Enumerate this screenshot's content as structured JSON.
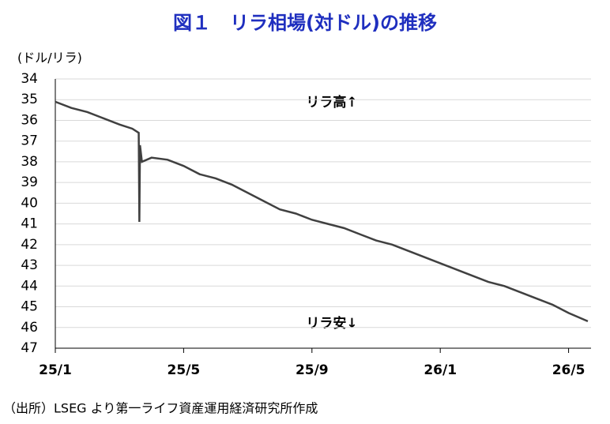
{
  "chart_data": {
    "type": "line",
    "title": "図１　リラ相場(対ドル)の推移",
    "y_label": "(ドル/リラ)",
    "annotations": [
      "リラ高↑",
      "リラ安↓"
    ],
    "source": "（出所）LSEG より第一ライフ資産運用経済研究所作成",
    "x": [
      0,
      0.5,
      1,
      1.5,
      2,
      2.4,
      2.6,
      2.62,
      2.64,
      2.7,
      3,
      3.5,
      4,
      4.5,
      5,
      5.5,
      6,
      6.5,
      7,
      7.5,
      8,
      8.5,
      9,
      9.5,
      10,
      10.5,
      11,
      11.5,
      12,
      12.5,
      13,
      13.5,
      14,
      14.5,
      15,
      15.5,
      16,
      16.6
    ],
    "series": [
      {
        "color": "#404040",
        "values": [
          35.1,
          35.4,
          35.6,
          35.9,
          36.2,
          36.4,
          36.6,
          40.9,
          37.2,
          38.0,
          37.8,
          37.9,
          38.2,
          38.6,
          38.8,
          39.1,
          39.5,
          39.9,
          40.3,
          40.5,
          40.8,
          41.0,
          41.2,
          41.5,
          41.8,
          42.0,
          42.3,
          42.6,
          42.9,
          43.2,
          43.5,
          43.8,
          44.0,
          44.3,
          44.6,
          44.9,
          45.3,
          45.7
        ]
      }
    ],
    "xlim": [
      0,
      16.7
    ],
    "xticks": [
      {
        "value": 0,
        "label": "25/1"
      },
      {
        "value": 4,
        "label": "25/5"
      },
      {
        "value": 8,
        "label": "25/9"
      },
      {
        "value": 12,
        "label": "26/1"
      },
      {
        "value": 16,
        "label": "26/5"
      }
    ],
    "ylim": [
      34,
      47
    ],
    "yticks": [
      34,
      35,
      36,
      37,
      38,
      39,
      40,
      41,
      42,
      43,
      44,
      45,
      46,
      47
    ],
    "y_inverted": true,
    "grid": true
  }
}
